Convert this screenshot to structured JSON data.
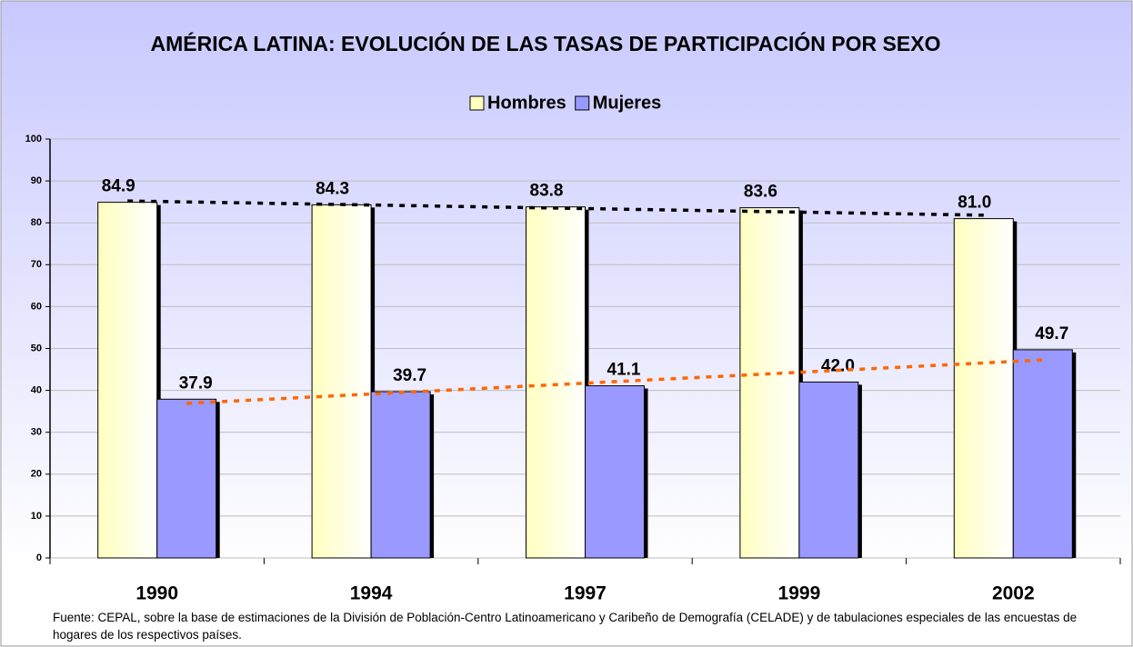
{
  "chart_data": {
    "type": "bar",
    "title": "AMÉRICA LATINA: EVOLUCIÓN DE LAS TASAS DE PARTICIPACIÓN POR SEXO",
    "categories": [
      "1990",
      "1994",
      "1997",
      "1999",
      "2002"
    ],
    "series": [
      {
        "name": "Hombres",
        "color": "#ffffc0",
        "values": [
          84.9,
          84.3,
          83.8,
          83.6,
          81.0
        ],
        "value_labels": [
          "84.9",
          "84.3",
          "83.8",
          "83.6",
          "81.0"
        ],
        "trendline": true,
        "trendline_color": "#000000"
      },
      {
        "name": "Mujeres",
        "color": "#9999ff",
        "values": [
          37.9,
          39.7,
          41.1,
          42.0,
          49.7
        ],
        "value_labels": [
          "37.9",
          "39.7",
          "41.1",
          "42.0",
          "49.7"
        ],
        "trendline": true,
        "trendline_color": "#ff6600"
      }
    ],
    "ylim": [
      0,
      100
    ],
    "yticks": [
      0,
      10,
      20,
      30,
      40,
      50,
      60,
      70,
      80,
      90,
      100
    ],
    "grid": true,
    "legend": "top",
    "source": "Fuente: CEPAL, sobre la base de estimaciones de la División de Población-Centro Latinoamericano y Caribeño de Demografía (CELADE) y de tabulaciones especiales de las encuestas de hogares de los respectivos países."
  }
}
